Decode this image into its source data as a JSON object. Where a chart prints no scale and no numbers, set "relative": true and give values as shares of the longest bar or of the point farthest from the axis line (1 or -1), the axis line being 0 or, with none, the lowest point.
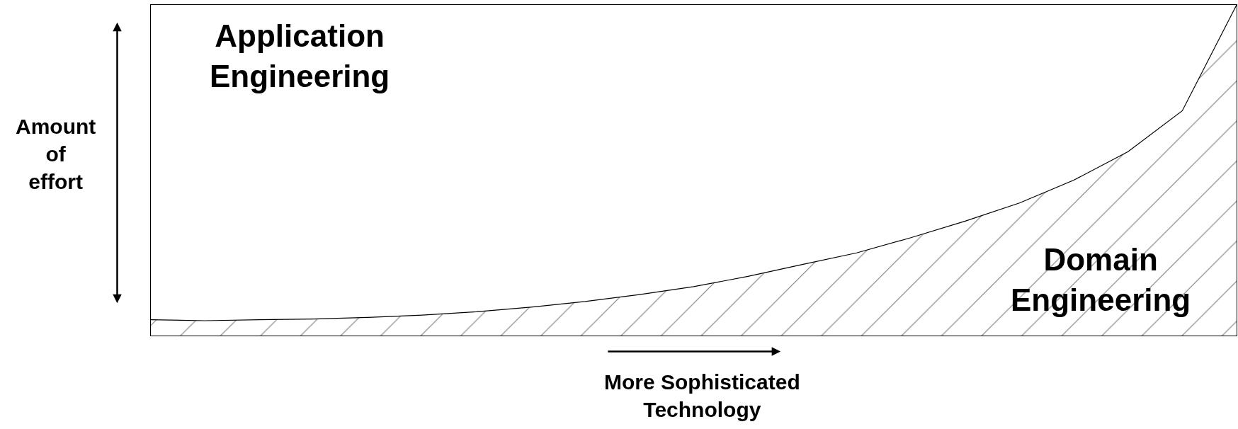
{
  "chart_data": {
    "type": "area",
    "relative": true,
    "xlabel": "More Sophisticated Technology",
    "ylabel": "Amount of effort",
    "annotations": [
      "Application Engineering",
      "Domain Engineering"
    ],
    "categories": [
      null,
      null,
      null,
      null,
      null,
      null,
      null,
      null,
      null,
      null,
      null,
      null,
      null,
      null,
      null,
      null,
      null,
      null,
      null,
      null,
      null
    ],
    "values": [
      0.048,
      0.045,
      0.048,
      0.05,
      0.055,
      0.062,
      0.072,
      0.086,
      0.103,
      0.124,
      0.148,
      0.179,
      0.215,
      0.25,
      0.296,
      0.346,
      0.401,
      0.47,
      0.556,
      0.68,
      1.0
    ],
    "color": "#000000",
    "legend": false
  }
}
